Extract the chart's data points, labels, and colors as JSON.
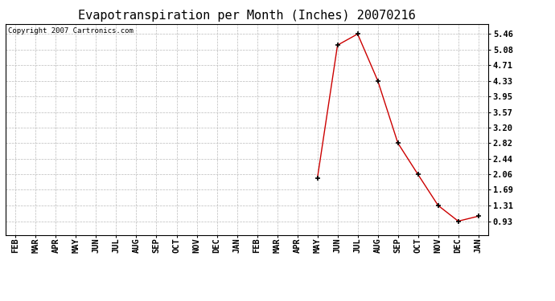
{
  "title": "Evapotranspiration per Month (Inches) 20070216",
  "copyright": "Copyright 2007 Cartronics.com",
  "months": [
    "FEB",
    "MAR",
    "APR",
    "MAY",
    "JUN",
    "JUL",
    "AUG",
    "SEP",
    "OCT",
    "NOV",
    "DEC",
    "JAN",
    "FEB",
    "MAR",
    "APR",
    "MAY",
    "JUN",
    "JUL",
    "AUG",
    "SEP",
    "OCT",
    "NOV",
    "DEC",
    "JAN"
  ],
  "values": [
    null,
    null,
    null,
    null,
    null,
    null,
    null,
    null,
    null,
    null,
    null,
    null,
    null,
    null,
    null,
    1.97,
    5.19,
    5.46,
    4.33,
    2.82,
    2.06,
    1.31,
    0.93,
    1.05
  ],
  "line_color": "#cc0000",
  "marker": "+",
  "marker_color": "#000000",
  "yticks": [
    0.93,
    1.31,
    1.69,
    2.06,
    2.44,
    2.82,
    3.2,
    3.57,
    3.95,
    4.33,
    4.71,
    5.08,
    5.46
  ],
  "ylim": [
    0.6,
    5.7
  ],
  "background_color": "#ffffff",
  "grid_color": "#bbbbbb",
  "title_fontsize": 11,
  "tick_fontsize": 7.5,
  "copyright_fontsize": 6.5
}
